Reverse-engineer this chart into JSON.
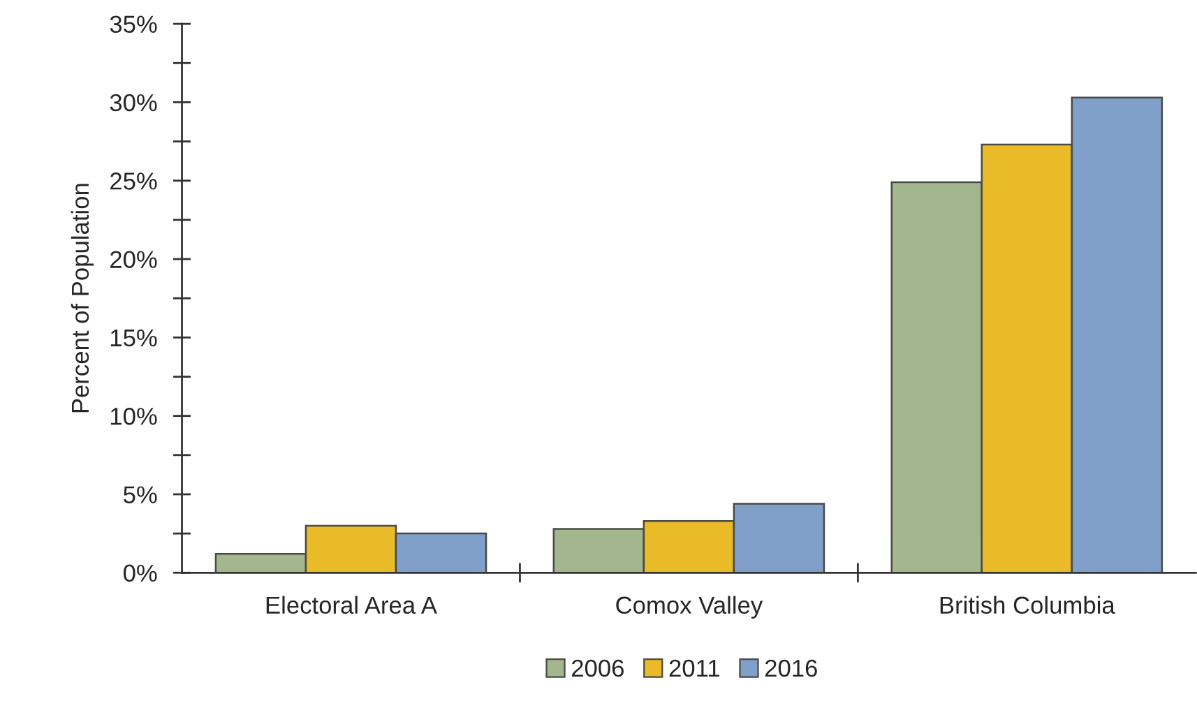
{
  "chart_data": {
    "type": "bar",
    "ylabel": "Percent of Population",
    "categories": [
      "Electoral Area A",
      "Comox Valley",
      "British Columbia"
    ],
    "series": [
      {
        "name": "2006",
        "color": "#a3b78f",
        "values": [
          1.2,
          2.8,
          24.9
        ]
      },
      {
        "name": "2011",
        "color": "#e9bb29",
        "values": [
          3.0,
          3.3,
          27.3
        ]
      },
      {
        "name": "2016",
        "color": "#809fc9",
        "values": [
          2.5,
          4.4,
          30.3
        ]
      }
    ],
    "ylim": [
      0,
      35
    ],
    "yticks": [
      {
        "value": 0,
        "label": "0%"
      },
      {
        "value": 2.5,
        "label": null
      },
      {
        "value": 5,
        "label": "5%"
      },
      {
        "value": 7.5,
        "label": null
      },
      {
        "value": 10,
        "label": "10%"
      },
      {
        "value": 12.5,
        "label": null
      },
      {
        "value": 15,
        "label": "15%"
      },
      {
        "value": 17.5,
        "label": null
      },
      {
        "value": 20,
        "label": "20%"
      },
      {
        "value": 22.5,
        "label": null
      },
      {
        "value": 25,
        "label": "25%"
      },
      {
        "value": 27.5,
        "label": null
      },
      {
        "value": 30,
        "label": "30%"
      },
      {
        "value": 32.5,
        "label": null
      },
      {
        "value": 35,
        "label": "35%"
      }
    ],
    "grid": false,
    "legend": "bottom"
  }
}
